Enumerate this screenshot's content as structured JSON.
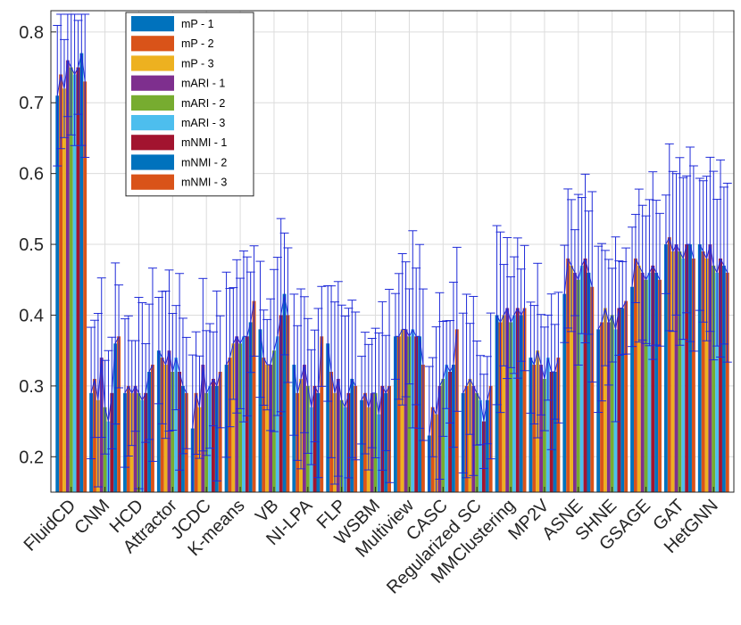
{
  "chart_data": {
    "type": "bar",
    "title": "",
    "xlabel": "",
    "ylabel": "",
    "ylim": [
      0.15,
      0.83
    ],
    "yticks": [
      0.2,
      0.3,
      0.4,
      0.5,
      0.6,
      0.7,
      0.8
    ],
    "ytick_labels": [
      "0.2",
      "0.3",
      "0.4",
      "0.5",
      "0.6",
      "0.7",
      "0.8"
    ],
    "grid": true,
    "legend_position": "top-left",
    "categories": [
      "FluidCD",
      "CNM",
      "HCD",
      "Attractor",
      "JCDC",
      "K-means",
      "VB",
      "NI-LPA",
      "FLP",
      "WSBM",
      "Multiview",
      "CASC",
      "Regularized SC",
      "MMClustering",
      "MP2V",
      "ASNE",
      "SHNE",
      "GSAGE",
      "GAT",
      "HetGNN"
    ],
    "series": [
      {
        "name": "mP - 1",
        "color": "#0072BD",
        "values": [
          0.71,
          0.29,
          0.29,
          0.35,
          0.24,
          0.33,
          0.38,
          0.33,
          0.36,
          0.28,
          0.37,
          0.23,
          0.29,
          0.4,
          0.34,
          0.43,
          0.38,
          0.44,
          0.5,
          0.5
        ]
      },
      {
        "name": "mP - 2",
        "color": "#D95319",
        "values": [
          0.74,
          0.31,
          0.3,
          0.34,
          0.29,
          0.34,
          0.34,
          0.29,
          0.32,
          0.29,
          0.37,
          0.27,
          0.3,
          0.39,
          0.33,
          0.48,
          0.39,
          0.48,
          0.51,
          0.49
        ]
      },
      {
        "name": "mP - 3",
        "color": "#EDB120",
        "values": [
          0.72,
          0.28,
          0.29,
          0.33,
          0.27,
          0.36,
          0.33,
          0.31,
          0.29,
          0.27,
          0.38,
          0.26,
          0.31,
          0.4,
          0.35,
          0.47,
          0.41,
          0.47,
          0.49,
          0.48
        ]
      },
      {
        "name": "mARI - 1",
        "color": "#7E2F8E",
        "values": [
          0.76,
          0.34,
          0.3,
          0.35,
          0.33,
          0.37,
          0.33,
          0.33,
          0.31,
          0.29,
          0.38,
          0.3,
          0.3,
          0.41,
          0.33,
          0.46,
          0.39,
          0.46,
          0.5,
          0.5
        ]
      },
      {
        "name": "mARI - 2",
        "color": "#77AC30",
        "values": [
          0.75,
          0.27,
          0.29,
          0.32,
          0.29,
          0.36,
          0.35,
          0.3,
          0.28,
          0.29,
          0.37,
          0.31,
          0.29,
          0.39,
          0.31,
          0.45,
          0.4,
          0.45,
          0.49,
          0.47
        ]
      },
      {
        "name": "mARI - 3",
        "color": "#4DBEEE",
        "values": [
          0.74,
          0.25,
          0.28,
          0.34,
          0.3,
          0.37,
          0.37,
          0.27,
          0.27,
          0.26,
          0.38,
          0.33,
          0.28,
          0.4,
          0.34,
          0.47,
          0.38,
          0.46,
          0.48,
          0.46
        ]
      },
      {
        "name": "mNMI - 1",
        "color": "#A2142F",
        "values": [
          0.75,
          0.29,
          0.29,
          0.32,
          0.31,
          0.37,
          0.4,
          0.3,
          0.29,
          0.3,
          0.37,
          0.32,
          0.25,
          0.41,
          0.32,
          0.48,
          0.41,
          0.47,
          0.5,
          0.48
        ]
      },
      {
        "name": "mNMI - 2",
        "color": "#0072BD",
        "values": [
          0.77,
          0.36,
          0.32,
          0.3,
          0.3,
          0.39,
          0.43,
          0.29,
          0.31,
          0.29,
          0.37,
          0.33,
          0.28,
          0.4,
          0.32,
          0.46,
          0.41,
          0.46,
          0.5,
          0.47
        ]
      },
      {
        "name": "mNMI - 3",
        "color": "#D95319",
        "values": [
          0.73,
          0.37,
          0.33,
          0.29,
          0.32,
          0.42,
          0.4,
          0.37,
          0.3,
          0.3,
          0.33,
          0.38,
          0.3,
          0.41,
          0.34,
          0.44,
          0.42,
          0.45,
          0.48,
          0.46
        ]
      }
    ]
  }
}
